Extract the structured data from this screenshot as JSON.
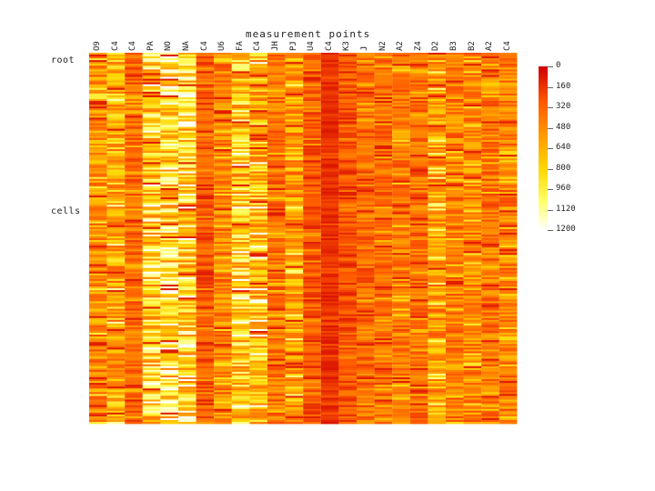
{
  "chart_data": {
    "type": "heatmap",
    "title": "measurement points",
    "row_labels": [
      "root",
      "cells"
    ],
    "columns": [
      "O9",
      "C4",
      "C4",
      "PA",
      "NO",
      "NA",
      "C4",
      "U6",
      "FA",
      "C4",
      "JH",
      "PJ",
      "U4",
      "C4",
      "K3",
      "J",
      "N2",
      "A2",
      "Z4",
      "D2",
      "B3",
      "B2",
      "A2",
      "C4"
    ],
    "colorbar": {
      "min": 0,
      "max": 1200,
      "ticks": [
        "0",
        "160",
        "320",
        "480",
        "640",
        "800",
        "960",
        "1120",
        "1200"
      ],
      "colors": [
        "#d00000",
        "#ff5a00",
        "#ff9900",
        "#ffd500",
        "#ffff66",
        "#ffffff"
      ]
    },
    "column_means": [
      450,
      560,
      320,
      720,
      800,
      760,
      260,
      410,
      700,
      620,
      360,
      520,
      260,
      120,
      240,
      330,
      330,
      400,
      330,
      520,
      400,
      430,
      360,
      400
    ],
    "rows": 200
  }
}
